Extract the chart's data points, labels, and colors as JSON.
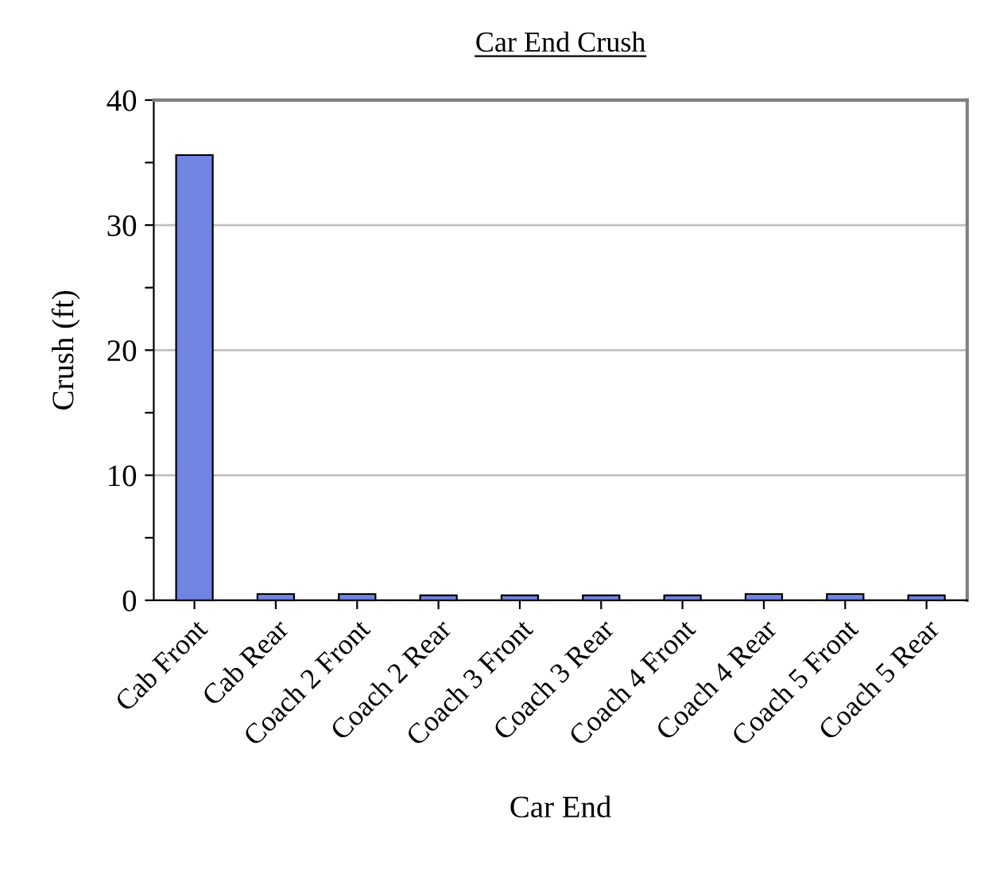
{
  "chart_data": {
    "type": "bar",
    "title": "Car End Crush",
    "xlabel": "Car End",
    "ylabel": "Crush (ft)",
    "categories": [
      "Cab Front",
      "Cab Rear",
      "Coach 2 Front",
      "Coach 2 Rear",
      "Coach 3 Front",
      "Coach 3 Rear",
      "Coach 4 Front",
      "Coach 4 Rear",
      "Coach 5 Front",
      "Coach 5 Rear"
    ],
    "values": [
      35.6,
      0.5,
      0.5,
      0.4,
      0.4,
      0.4,
      0.4,
      0.5,
      0.5,
      0.4
    ],
    "color": "#7084e4",
    "ylim": [
      0,
      40
    ],
    "yticks": [
      0,
      {
        "value": 5,
        "label": null
      },
      10,
      {
        "value": 15,
        "label": null
      },
      20,
      {
        "value": 25,
        "label": null
      },
      30,
      {
        "value": 35,
        "label": null
      },
      40
    ],
    "grid": "y"
  }
}
